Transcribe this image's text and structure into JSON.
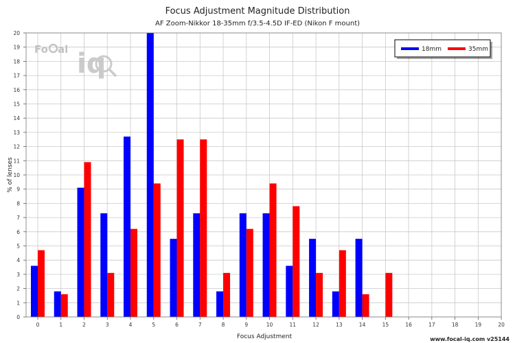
{
  "chart_data": {
    "type": "bar",
    "title": "Focus Adjustment Magnitude Distribution",
    "subtitle": "AF Zoom-Nikkor 18-35mm f/3.5-4.5D IF-ED (Nikon F mount)",
    "xlabel": "Focus Adjustment",
    "ylabel": "% of lenses",
    "ylim": [
      0,
      20
    ],
    "grid": true,
    "legend_position": "top-right",
    "categories": [
      "0",
      "1",
      "2",
      "3",
      "4",
      "5",
      "6",
      "7",
      "8",
      "9",
      "10",
      "11",
      "12",
      "13",
      "14",
      "15",
      "16",
      "17",
      "18",
      "19",
      "20"
    ],
    "y_ticks": [
      "0",
      "1",
      "2",
      "3",
      "4",
      "5",
      "6",
      "7",
      "8",
      "9",
      "10",
      "11",
      "12",
      "13",
      "14",
      "15",
      "16",
      "17",
      "18",
      "19",
      "20"
    ],
    "series": [
      {
        "name": "18mm",
        "color": "#0000ff",
        "values": [
          3.6,
          1.8,
          9.1,
          7.3,
          12.7,
          20.0,
          5.5,
          7.3,
          1.8,
          7.3,
          7.3,
          3.6,
          5.5,
          1.8,
          5.5,
          0,
          0,
          0,
          0,
          0,
          0
        ]
      },
      {
        "name": "35mm",
        "color": "#ff0000",
        "values": [
          4.7,
          1.6,
          10.9,
          3.1,
          6.2,
          9.4,
          12.5,
          12.5,
          3.1,
          6.2,
          9.4,
          7.8,
          3.1,
          4.7,
          1.6,
          3.1,
          0,
          0,
          0,
          0,
          0
        ]
      }
    ]
  },
  "logo": {
    "brand_left": "Fo",
    "brand_right": "al",
    "iq": "iq",
    "icon": "magnifier-icon"
  },
  "footer": {
    "text": "www.focal-iq.com  v25144"
  }
}
